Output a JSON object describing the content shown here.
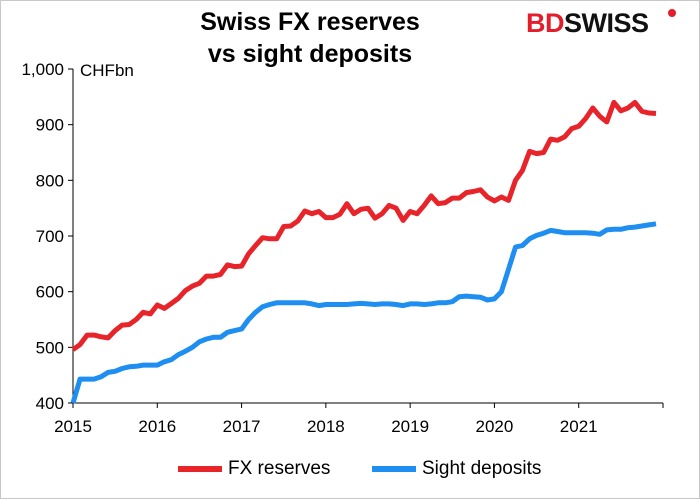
{
  "title_line1": "Swiss FX reserves",
  "title_line2": "vs sight deposits",
  "logo": {
    "bd": "BD",
    "swiss": "SWISS"
  },
  "chart_data": {
    "type": "line",
    "title": "Swiss FX reserves vs sight deposits",
    "unit_label": "CHFbn",
    "x_tick_labels": [
      "2015",
      "2016",
      "2017",
      "2018",
      "2019",
      "2020",
      "2021"
    ],
    "y_tick_labels": [
      "400",
      "500",
      "600",
      "700",
      "800",
      "900",
      "1,000"
    ],
    "xlim": [
      2015.0,
      2022.0
    ],
    "ylim": [
      400,
      1000
    ],
    "grid": false,
    "legend_position": "bottom",
    "x": [
      2015.0,
      2015.083,
      2015.167,
      2015.25,
      2015.333,
      2015.417,
      2015.5,
      2015.583,
      2015.667,
      2015.75,
      2015.833,
      2015.917,
      2016.0,
      2016.083,
      2016.167,
      2016.25,
      2016.333,
      2016.417,
      2016.5,
      2016.583,
      2016.667,
      2016.75,
      2016.833,
      2016.917,
      2017.0,
      2017.083,
      2017.167,
      2017.25,
      2017.333,
      2017.417,
      2017.5,
      2017.583,
      2017.667,
      2017.75,
      2017.833,
      2017.917,
      2018.0,
      2018.083,
      2018.167,
      2018.25,
      2018.333,
      2018.417,
      2018.5,
      2018.583,
      2018.667,
      2018.75,
      2018.833,
      2018.917,
      2019.0,
      2019.083,
      2019.167,
      2019.25,
      2019.333,
      2019.417,
      2019.5,
      2019.583,
      2019.667,
      2019.75,
      2019.833,
      2019.917,
      2020.0,
      2020.083,
      2020.167,
      2020.25,
      2020.333,
      2020.417,
      2020.5,
      2020.583,
      2020.667,
      2020.75,
      2020.833,
      2020.917,
      2021.0,
      2021.083,
      2021.167,
      2021.25,
      2021.333,
      2021.417,
      2021.5,
      2021.583,
      2021.667,
      2021.75,
      2021.833,
      2021.917
    ],
    "series": [
      {
        "name": "FX reserves",
        "color": "#e8242b",
        "values": [
          496,
          505,
          522,
          522,
          519,
          517,
          530,
          540,
          541,
          550,
          563,
          560,
          576,
          570,
          579,
          588,
          602,
          610,
          615,
          628,
          628,
          631,
          648,
          645,
          646,
          668,
          683,
          697,
          695,
          695,
          717,
          718,
          727,
          745,
          740,
          744,
          733,
          733,
          739,
          758,
          740,
          748,
          750,
          732,
          740,
          755,
          750,
          728,
          744,
          740,
          755,
          772,
          758,
          760,
          768,
          768,
          778,
          780,
          783,
          770,
          763,
          770,
          764,
          800,
          818,
          852,
          848,
          850,
          874,
          872,
          878,
          893,
          897,
          911,
          930,
          915,
          905,
          940,
          925,
          930,
          940,
          924,
          921,
          920
        ]
      },
      {
        "name": "Sight deposits",
        "color": "#1f8ef1",
        "values": [
          400,
          443,
          443,
          443,
          447,
          455,
          457,
          462,
          465,
          466,
          468,
          468,
          468,
          474,
          478,
          487,
          493,
          500,
          510,
          515,
          518,
          518,
          527,
          530,
          533,
          550,
          563,
          573,
          577,
          580,
          580,
          580,
          580,
          580,
          578,
          575,
          577,
          577,
          577,
          577,
          578,
          579,
          578,
          577,
          578,
          578,
          577,
          575,
          578,
          578,
          577,
          578,
          580,
          580,
          582,
          591,
          592,
          591,
          590,
          585,
          587,
          600,
          640,
          680,
          683,
          695,
          701,
          705,
          710,
          708,
          706,
          706,
          706,
          706,
          705,
          703,
          711,
          712,
          712,
          715,
          716,
          718,
          720,
          722
        ]
      }
    ]
  }
}
